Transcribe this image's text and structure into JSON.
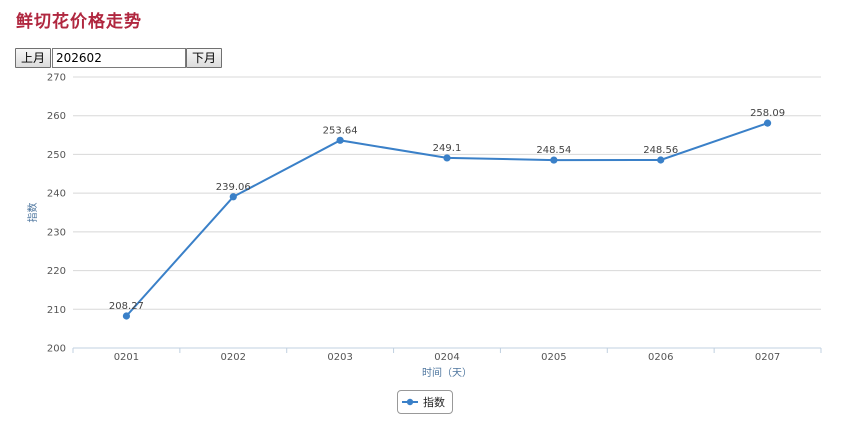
{
  "page_title": "鲜切花价格走势",
  "nav": {
    "prev_label": "上月",
    "month_value": "202602",
    "next_label": "下月"
  },
  "chart_data": {
    "type": "line",
    "categories": [
      "0201",
      "0202",
      "0203",
      "0204",
      "0205",
      "0206",
      "0207"
    ],
    "series": [
      {
        "name": "指数",
        "values": [
          208.27,
          239.06,
          253.64,
          249.1,
          248.54,
          248.56,
          258.09
        ],
        "labels": [
          "208.27",
          "239.06",
          "253.64",
          "249.1",
          "248.54",
          "248.56",
          "258.09"
        ],
        "color": "#3a80c8"
      }
    ],
    "xlabel": "时间（天）",
    "ylabel": "指数",
    "ylim": [
      200,
      270
    ],
    "yticks": [
      200,
      210,
      220,
      230,
      240,
      250,
      260,
      270
    ],
    "grid": true,
    "legend": "bottom-center"
  }
}
